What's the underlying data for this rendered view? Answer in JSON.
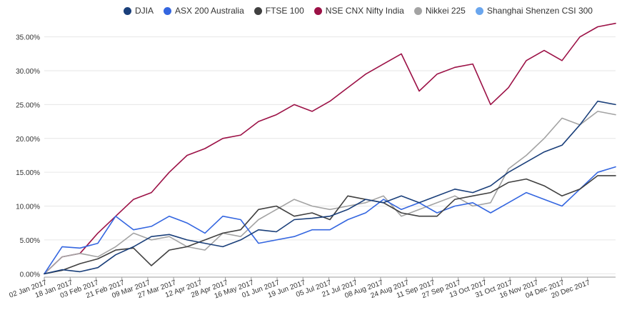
{
  "chart_data": {
    "type": "line",
    "title": "",
    "xlabel": "",
    "ylabel": "",
    "ylim": [
      -0.5,
      37.5
    ],
    "y_ticks": [
      0,
      5,
      10,
      15,
      20,
      25,
      30,
      35
    ],
    "y_tick_labels": [
      "0.00%",
      "5.00%",
      "10.00%",
      "15.00%",
      "20.00%",
      "25.00%",
      "30.00%",
      "35.00%"
    ],
    "grid": "horizontal",
    "legend_position": "top",
    "x_tick_labels": [
      "02 Jan 2017",
      "18 Jan 2017",
      "03 Feb 2017",
      "21 Feb 2017",
      "09 Mar 2017",
      "27 Mar 2017",
      "12 Apr 2017",
      "28 Apr 2017",
      "16 May 2017",
      "01 Jun 2017",
      "19 Jun 2017",
      "05 Jul 2017",
      "21 Jul 2017",
      "08 Aug 2017",
      "24 Aug 2017",
      "11 Sep 2017",
      "27 Sep 2017",
      "13 Oct 2017",
      "31 Oct 2017",
      "16 Nov 2017",
      "04 Dec 2017",
      "20 Dec 2017"
    ],
    "series": [
      {
        "name": "DJIA",
        "color": "#1a3f7a",
        "values": [
          0.0,
          0.6,
          0.3,
          0.9,
          2.8,
          4.0,
          5.5,
          5.8,
          5.0,
          4.5,
          4.0,
          5.0,
          6.5,
          6.2,
          8.0,
          8.2,
          8.5,
          9.5,
          11.0,
          10.5,
          11.5,
          10.5,
          11.5,
          12.5,
          12.0,
          13.0,
          15.0,
          16.5,
          18.0,
          19.0,
          22.0,
          25.5,
          25.0
        ]
      },
      {
        "name": "ASX 200 Australia",
        "color": "#3466e0",
        "values": [
          0.0,
          4.0,
          3.8,
          4.5,
          8.5,
          6.5,
          7.0,
          8.5,
          7.5,
          6.0,
          8.5,
          8.0,
          4.5,
          5.0,
          5.5,
          6.5,
          6.5,
          8.0,
          9.0,
          11.0,
          9.5,
          10.5,
          9.0,
          10.0,
          10.5,
          9.0,
          10.5,
          12.0,
          11.0,
          10.0,
          12.5,
          15.0,
          15.8
        ]
      },
      {
        "name": "FTSE 100",
        "color": "#404040",
        "values": [
          0.0,
          0.5,
          1.5,
          2.2,
          3.5,
          3.8,
          1.2,
          3.5,
          4.0,
          5.0,
          6.0,
          6.5,
          9.5,
          10.0,
          8.5,
          9.0,
          8.0,
          11.5,
          11.0,
          10.5,
          9.0,
          8.5,
          8.5,
          11.0,
          11.5,
          12.0,
          13.5,
          14.0,
          13.0,
          11.5,
          12.5,
          14.5,
          14.5
        ]
      },
      {
        "name": "NSE CNX Nifty India",
        "color": "#9c1146",
        "values": [
          0.0,
          2.5,
          3.0,
          6.0,
          8.5,
          11.0,
          12.0,
          15.0,
          17.5,
          18.5,
          20.0,
          20.5,
          22.5,
          23.5,
          25.0,
          24.0,
          25.5,
          27.5,
          29.5,
          31.0,
          32.5,
          27.0,
          29.5,
          30.5,
          31.0,
          25.0,
          27.5,
          31.5,
          33.0,
          31.5,
          35.0,
          36.5,
          37.0
        ]
      },
      {
        "name": "Nikkei 225",
        "color": "#a3a3a3",
        "values": [
          0.0,
          2.5,
          3.0,
          2.5,
          4.0,
          6.0,
          5.0,
          5.5,
          4.0,
          3.5,
          6.0,
          5.5,
          8.0,
          9.5,
          11.0,
          10.0,
          9.5,
          10.0,
          10.5,
          11.5,
          8.5,
          9.5,
          10.5,
          11.5,
          10.0,
          10.5,
          15.5,
          17.5,
          20.0,
          23.0,
          22.0,
          24.0,
          23.5
        ]
      },
      {
        "name": "Shanghai Shenzen CSI 300",
        "color": "#6aa6ee",
        "values": []
      }
    ]
  }
}
